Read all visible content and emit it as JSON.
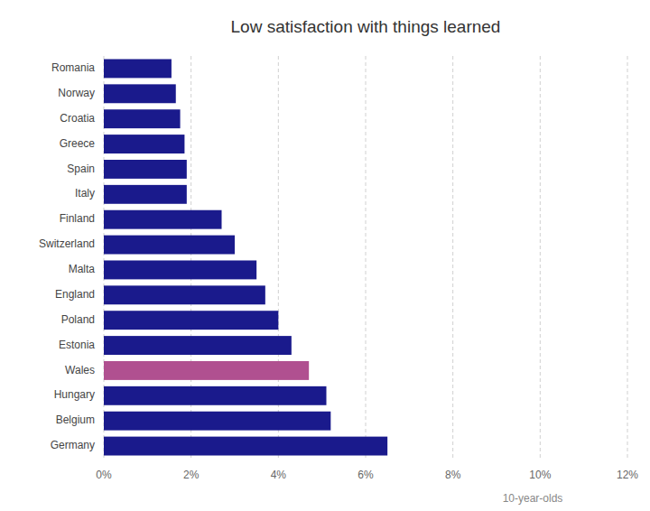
{
  "chart_data": {
    "type": "bar",
    "orientation": "horizontal",
    "title": "Low satisfaction with things learned",
    "xlabel": "10-year-olds",
    "categories": [
      "Germany",
      "Belgium",
      "Hungary",
      "Wales",
      "Estonia",
      "Poland",
      "England",
      "Malta",
      "Switzerland",
      "Finland",
      "Italy",
      "Spain",
      "Greece",
      "Croatia",
      "Norway",
      "Romania"
    ],
    "values": [
      6.5,
      5.2,
      5.1,
      4.7,
      4.3,
      4.0,
      3.7,
      3.5,
      3.0,
      2.7,
      1.9,
      1.9,
      1.85,
      1.75,
      1.65,
      1.55
    ],
    "colors": [
      "#1a1a8c",
      "#1a1a8c",
      "#1a1a8c",
      "#b05090",
      "#1a1a8c",
      "#1a1a8c",
      "#1a1a8c",
      "#1a1a8c",
      "#1a1a8c",
      "#1a1a8c",
      "#1a1a8c",
      "#1a1a8c",
      "#1a1a8c",
      "#1a1a8c",
      "#1a1a8c",
      "#1a1a8c"
    ],
    "xlim": [
      0,
      12
    ],
    "xticks": [
      {
        "value": 0,
        "label": "0%"
      },
      {
        "value": 2,
        "label": "2%"
      },
      {
        "value": 4,
        "label": "4%"
      },
      {
        "value": 6,
        "label": "6%"
      },
      {
        "value": 8,
        "label": "8%"
      },
      {
        "value": 10,
        "label": "10%"
      },
      {
        "value": 12,
        "label": "12%"
      }
    ],
    "grid": true
  }
}
